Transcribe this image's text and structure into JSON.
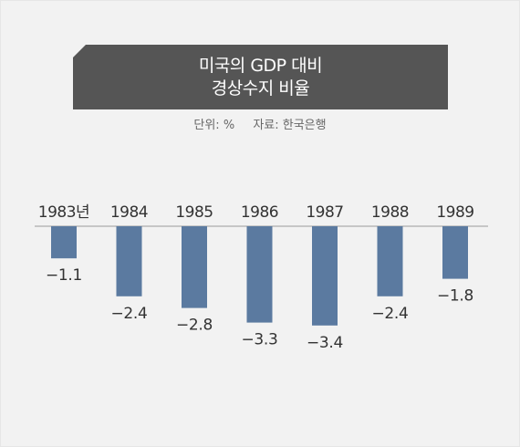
{
  "header": {
    "title_line1": "미국의 GDP 대비",
    "title_line2": "경상수지 비율"
  },
  "meta": {
    "unit": "단위: %",
    "source": "자료: 한국은행"
  },
  "colors": {
    "bar": "#5b7aa0",
    "title_bg": "#555555",
    "axis": "#999999"
  },
  "chart_data": {
    "type": "bar",
    "title": "미국의 GDP 대비 경상수지 비율",
    "unit": "단위: %",
    "source": "자료: 한국은행",
    "categories": [
      "1983년",
      "1984",
      "1985",
      "1986",
      "1987",
      "1988",
      "1989"
    ],
    "values": [
      -1.1,
      -2.4,
      -2.8,
      -3.3,
      -3.4,
      -2.4,
      -1.8
    ],
    "value_labels": [
      "−1.1",
      "−2.4",
      "−2.8",
      "−3.3",
      "−3.4",
      "−2.4",
      "−1.8"
    ],
    "ylim": [
      -3.4,
      0
    ],
    "grid": false,
    "legend": "none"
  }
}
